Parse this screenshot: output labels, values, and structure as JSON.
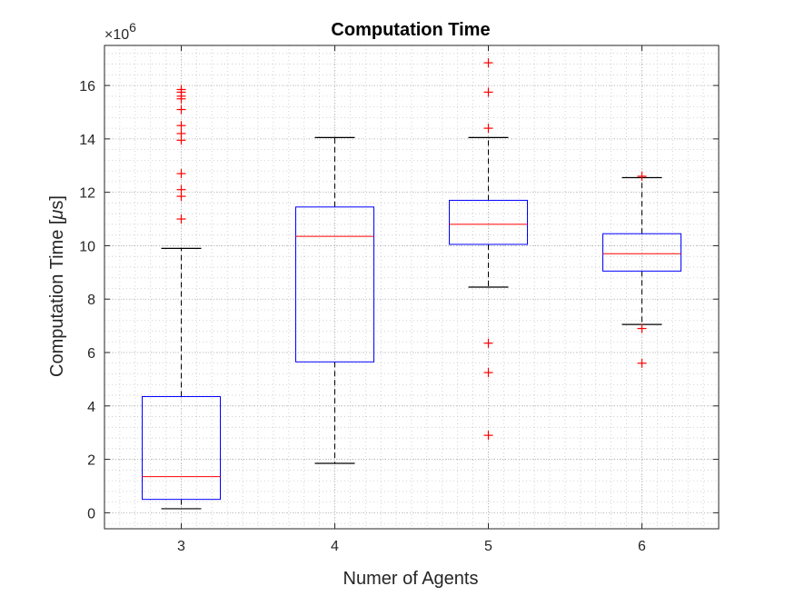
{
  "chart_data": {
    "type": "boxplot",
    "title": "Computation Time",
    "xlabel": "Numer of Agents",
    "ylabel_prefix": "Computation Time [",
    "ylabel_unit_mu": "μ",
    "ylabel_suffix": "s]",
    "y_exponent_base": "×10",
    "y_exponent_power": "6",
    "ylim": [
      -0.6,
      17.5
    ],
    "yticks": [
      0,
      2,
      4,
      6,
      8,
      10,
      12,
      14,
      16
    ],
    "yminor_step": 0.4,
    "categories": [
      "3",
      "4",
      "5",
      "6"
    ],
    "boxes": [
      {
        "category": "3",
        "whisker_low": 0.15,
        "q1": 0.5,
        "median": 1.35,
        "q3": 4.35,
        "whisker_high": 9.9,
        "outliers": [
          11.0,
          11.85,
          12.1,
          12.7,
          13.95,
          14.2,
          14.5,
          15.1,
          15.5,
          15.6,
          15.75,
          15.85
        ]
      },
      {
        "category": "4",
        "whisker_low": 1.85,
        "q1": 5.65,
        "median": 10.35,
        "q3": 11.45,
        "whisker_high": 14.05,
        "outliers": []
      },
      {
        "category": "5",
        "whisker_low": 8.45,
        "q1": 10.05,
        "median": 10.8,
        "q3": 11.7,
        "whisker_high": 14.05,
        "outliers": [
          2.9,
          5.25,
          6.35,
          14.4,
          15.75,
          16.85
        ]
      },
      {
        "category": "6",
        "whisker_low": 7.05,
        "q1": 9.05,
        "median": 9.7,
        "q3": 10.45,
        "whisker_high": 12.55,
        "outliers": [
          5.6,
          6.9,
          12.6
        ]
      }
    ],
    "colors": {
      "box": "#0000ff",
      "median": "#ff0000",
      "outlier": "#ff0000",
      "whisker": "#000000",
      "axes": "#262626",
      "grid": "#c8c8c8"
    },
    "grid": "on"
  }
}
